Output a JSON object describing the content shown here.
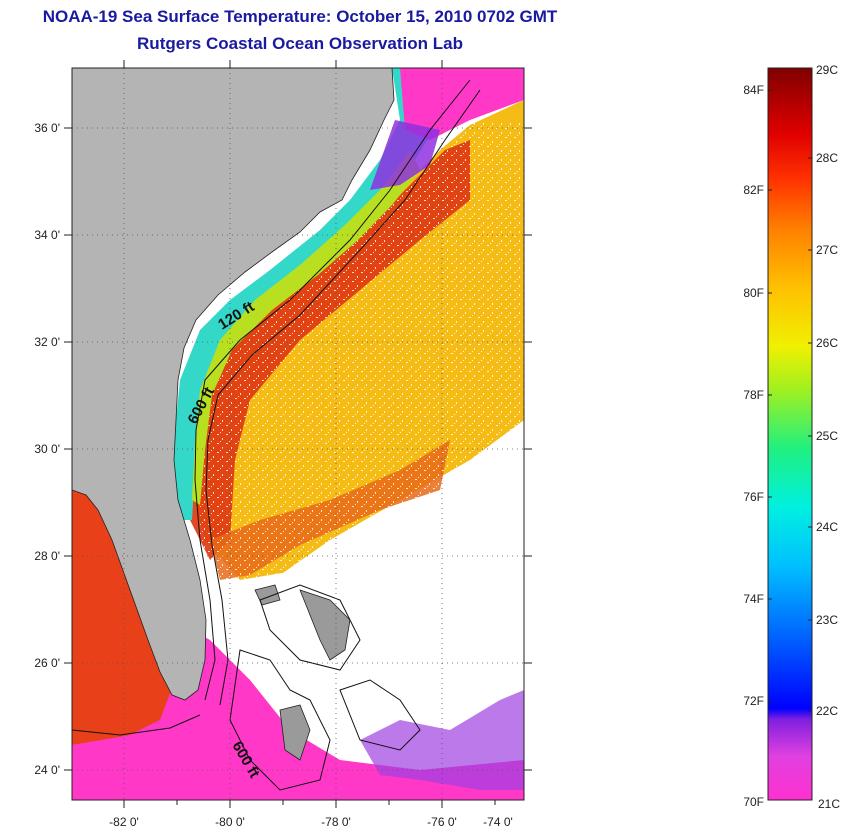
{
  "title": "NOAA-19 Sea Surface Temperature:  October 15, 2010 0702 GMT",
  "subtitle": "Rutgers Coastal Ocean Observation Lab",
  "map": {
    "lon_ticks": [
      "-82 0'",
      "-80 0'",
      "-78 0'",
      "-76 0'",
      "-74 0'"
    ],
    "lat_ticks": [
      "36 0'",
      "34 0'",
      "32 0'",
      "30 0'",
      "28 0'",
      "26 0'",
      "24 0'"
    ],
    "contour_labels": [
      "120 ft",
      "600 ft",
      "600 ft"
    ],
    "colors": {
      "land": "#b4b4b4",
      "cloud": "#ffffff",
      "warm": "#d82a10",
      "mid": "#f0c010",
      "cool": "#10e0e0",
      "cold": "#ff30c0"
    }
  },
  "colorbar": {
    "fahrenheit": [
      "84F",
      "82F",
      "80F",
      "78F",
      "76F",
      "74F",
      "72F",
      "70F"
    ],
    "celsius": [
      "29C",
      "28C",
      "27C",
      "26C",
      "25C",
      "24C",
      "23C",
      "22C",
      "21C"
    ],
    "range_c": [
      21,
      29
    ]
  }
}
